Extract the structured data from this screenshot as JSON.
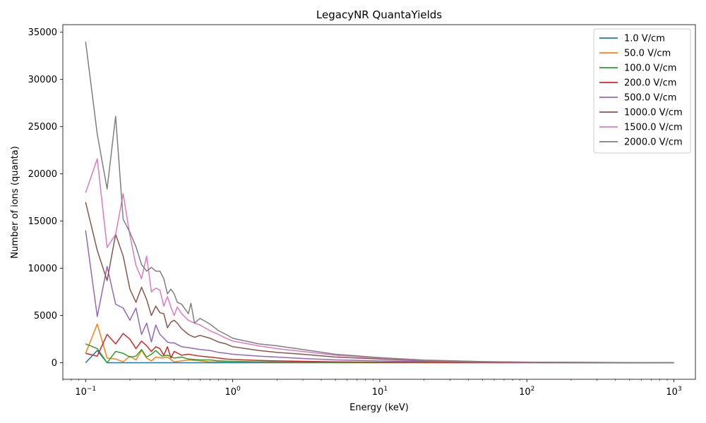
{
  "chart_data": {
    "type": "line",
    "title": "LegacyNR QuantaYields",
    "xlabel": "Energy (keV)",
    "ylabel": "Number of ions (quanta)",
    "xscale": "log",
    "xlim": [
      0.07,
      1400
    ],
    "ylim": [
      -1750,
      35800
    ],
    "xticks": [
      {
        "value": 0.1,
        "base": "10",
        "exp": "−1"
      },
      {
        "value": 1,
        "base": "10",
        "exp": "0"
      },
      {
        "value": 10,
        "base": "10",
        "exp": "1"
      },
      {
        "value": 100,
        "base": "10",
        "exp": "2"
      },
      {
        "value": 1000,
        "base": "10",
        "exp": "3"
      }
    ],
    "yticks": [
      0,
      5000,
      10000,
      15000,
      20000,
      25000,
      30000,
      35000
    ],
    "legend": "top-right",
    "grid": false,
    "series": [
      {
        "name": "1.0 V/cm",
        "color": "#1f77b4",
        "x": [
          0.1,
          0.12,
          0.14,
          0.2,
          0.5,
          1,
          10,
          100,
          1000
        ],
        "y": [
          0,
          1300,
          0,
          0,
          0,
          0,
          0,
          0,
          0
        ]
      },
      {
        "name": "50.0 V/cm",
        "color": "#ff7f0e",
        "x": [
          0.1,
          0.12,
          0.14,
          0.16,
          0.18,
          0.2,
          0.22,
          0.24,
          0.26,
          0.28,
          0.3,
          0.33,
          0.36,
          0.4,
          0.45,
          0.5,
          0.6,
          0.7,
          0.8,
          1,
          1.5,
          2,
          5,
          10,
          100,
          1000
        ],
        "y": [
          1000,
          4100,
          500,
          400,
          100,
          700,
          300,
          1300,
          500,
          200,
          600,
          500,
          600,
          100,
          200,
          300,
          200,
          100,
          100,
          100,
          80,
          60,
          40,
          30,
          10,
          0
        ]
      },
      {
        "name": "100.0 V/cm",
        "color": "#2ca02c",
        "x": [
          0.1,
          0.12,
          0.14,
          0.16,
          0.18,
          0.2,
          0.22,
          0.24,
          0.26,
          0.28,
          0.3,
          0.33,
          0.36,
          0.4,
          0.45,
          0.5,
          0.6,
          0.7,
          0.8,
          1,
          1.5,
          2,
          5,
          10,
          100,
          1000
        ],
        "y": [
          2000,
          1500,
          0,
          1200,
          1000,
          600,
          700,
          1400,
          600,
          900,
          1300,
          700,
          800,
          500,
          600,
          400,
          300,
          300,
          200,
          150,
          100,
          80,
          50,
          30,
          10,
          0
        ]
      },
      {
        "name": "200.0 V/cm",
        "color": "#d62728",
        "x": [
          0.1,
          0.12,
          0.14,
          0.16,
          0.18,
          0.2,
          0.22,
          0.24,
          0.26,
          0.28,
          0.3,
          0.32,
          0.34,
          0.36,
          0.38,
          0.4,
          0.45,
          0.5,
          0.6,
          0.7,
          0.8,
          0.9,
          1,
          1.5,
          2,
          3,
          5,
          10,
          100,
          1000
        ],
        "y": [
          1000,
          700,
          3000,
          2000,
          3100,
          2500,
          1500,
          2300,
          1800,
          1200,
          1700,
          1500,
          800,
          1700,
          500,
          1200,
          800,
          900,
          700,
          600,
          500,
          400,
          350,
          250,
          200,
          150,
          100,
          60,
          20,
          0
        ]
      },
      {
        "name": "500.0 V/cm",
        "color": "#9467bd",
        "x": [
          0.1,
          0.12,
          0.14,
          0.16,
          0.18,
          0.2,
          0.22,
          0.24,
          0.26,
          0.28,
          0.3,
          0.32,
          0.34,
          0.36,
          0.38,
          0.4,
          0.45,
          0.5,
          0.6,
          0.7,
          0.8,
          0.9,
          1,
          1.5,
          2,
          3,
          5,
          10,
          20,
          100,
          1000
        ],
        "y": [
          14000,
          4900,
          10200,
          6200,
          5800,
          4500,
          5800,
          3000,
          4200,
          2200,
          4000,
          3000,
          2600,
          2200,
          2100,
          2100,
          1700,
          1600,
          1400,
          1300,
          1100,
          1000,
          900,
          700,
          600,
          450,
          300,
          200,
          120,
          40,
          0
        ]
      },
      {
        "name": "1000.0 V/cm",
        "color": "#8c564b",
        "x": [
          0.1,
          0.12,
          0.14,
          0.16,
          0.18,
          0.2,
          0.22,
          0.24,
          0.26,
          0.28,
          0.3,
          0.32,
          0.34,
          0.36,
          0.38,
          0.4,
          0.42,
          0.45,
          0.5,
          0.55,
          0.6,
          0.7,
          0.8,
          0.9,
          1,
          1.5,
          2,
          3,
          5,
          10,
          20,
          50,
          100,
          1000
        ],
        "y": [
          17000,
          11900,
          8700,
          13600,
          11300,
          7800,
          6400,
          8000,
          6700,
          5000,
          6000,
          5300,
          5200,
          3700,
          4300,
          4500,
          4200,
          3600,
          3000,
          2700,
          2900,
          2600,
          2200,
          2000,
          1700,
          1300,
          1100,
          900,
          600,
          400,
          200,
          100,
          50,
          0
        ]
      },
      {
        "name": "1500.0 V/cm",
        "color": "#e377c2",
        "x": [
          0.1,
          0.12,
          0.14,
          0.16,
          0.18,
          0.2,
          0.22,
          0.24,
          0.26,
          0.28,
          0.3,
          0.32,
          0.34,
          0.36,
          0.38,
          0.4,
          0.42,
          0.45,
          0.5,
          0.55,
          0.6,
          0.7,
          0.8,
          0.9,
          1,
          1.5,
          2,
          3,
          5,
          10,
          20,
          50,
          100,
          1000
        ],
        "y": [
          18000,
          21600,
          12200,
          13600,
          17900,
          13500,
          10300,
          8900,
          11300,
          7500,
          7900,
          7700,
          6000,
          7000,
          5900,
          5000,
          5900,
          5200,
          4500,
          4200,
          4000,
          3400,
          3000,
          2600,
          2300,
          1800,
          1500,
          1200,
          800,
          500,
          250,
          120,
          60,
          0
        ]
      },
      {
        "name": "2000.0 V/cm",
        "color": "#7f7f7f",
        "x": [
          0.1,
          0.12,
          0.14,
          0.16,
          0.18,
          0.2,
          0.22,
          0.24,
          0.26,
          0.28,
          0.3,
          0.32,
          0.34,
          0.36,
          0.38,
          0.4,
          0.42,
          0.45,
          0.5,
          0.52,
          0.55,
          0.6,
          0.7,
          0.8,
          0.9,
          1,
          1.5,
          2,
          3,
          5,
          10,
          20,
          50,
          100,
          1000
        ],
        "y": [
          34000,
          24200,
          18400,
          26100,
          15200,
          13800,
          12300,
          10400,
          9700,
          10100,
          9700,
          9700,
          8900,
          7300,
          7800,
          7300,
          6400,
          6200,
          5200,
          6300,
          4200,
          4700,
          4100,
          3400,
          3000,
          2600,
          2000,
          1800,
          1400,
          900,
          550,
          280,
          130,
          70,
          0
        ]
      }
    ]
  }
}
